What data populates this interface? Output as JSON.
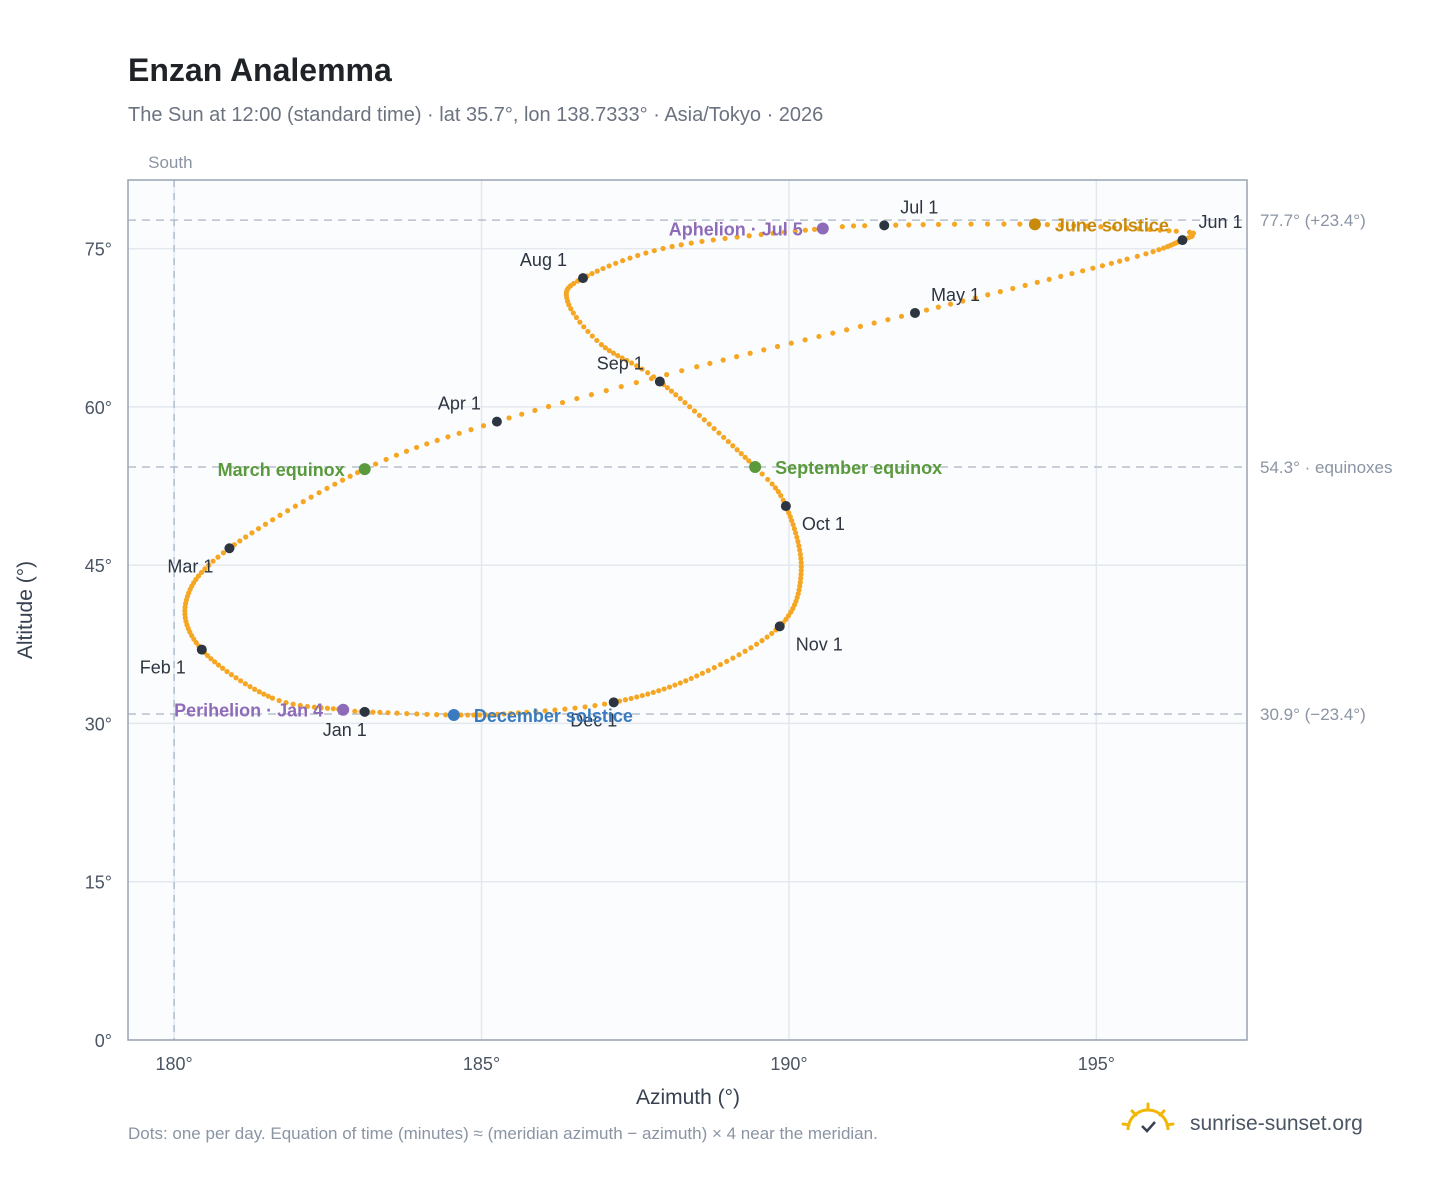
{
  "title": "Enzan Analemma",
  "subtitle": "The Sun at 12:00 (standard time) · lat 35.7°, lon 138.7333° · Asia/Tokyo · 2026",
  "footnote": "Dots: one per day. Equation of time (minutes) ≈ (meridian azimuth − azimuth) × 4 near the meridian.",
  "brand": {
    "name": "sunrise-sunset.org",
    "icon": "sun-check-icon"
  },
  "colors": {
    "curve": "#f5a623",
    "month_marker": "#2d3540",
    "equinox": "#5a9a3c",
    "june_solstice": "#c88a0a",
    "december_solstice": "#3a7bbf",
    "apsis": "#8e6bb8",
    "plot_bg": "#fbfcfe",
    "grid": "#e3e8ef",
    "axis": "#9aa3b2",
    "ref_line": "#b8c0cc"
  },
  "chart_data": {
    "type": "scatter",
    "title": "Enzan Analemma",
    "xlabel": "Azimuth (°)",
    "ylabel": "Altitude (°)",
    "xlim": [
      179.25,
      197.45
    ],
    "ylim": [
      0,
      81.5
    ],
    "xticks": [
      180,
      185,
      190,
      195
    ],
    "xtick_labels": [
      "180°",
      "185°",
      "190°",
      "195°"
    ],
    "yticks": [
      0,
      15,
      30,
      45,
      60,
      75
    ],
    "ytick_labels": [
      "0°",
      "15°",
      "30°",
      "45°",
      "60°",
      "75°"
    ],
    "grid": true,
    "meridian": {
      "x": 180,
      "label": "South"
    },
    "reference_lines": [
      {
        "y": 77.7,
        "label": "77.7° (+23.4°)"
      },
      {
        "y": 54.3,
        "label": "54.3° · equinoxes"
      },
      {
        "y": 30.9,
        "label": "30.9° (−23.4°)"
      }
    ],
    "series": [
      {
        "type": "daily-curve",
        "anchors": [
          {
            "doy": 1,
            "x": 183.1,
            "y": 31.1
          },
          {
            "doy": 4,
            "x": 182.75,
            "y": 31.3
          },
          {
            "doy": 15,
            "x": 181.6,
            "y": 32.4
          },
          {
            "doy": 32,
            "x": 180.45,
            "y": 37.0
          },
          {
            "doy": 46,
            "x": 180.2,
            "y": 41.7
          },
          {
            "doy": 60,
            "x": 180.9,
            "y": 46.6
          },
          {
            "doy": 79,
            "x": 183.1,
            "y": 54.1
          },
          {
            "doy": 91,
            "x": 185.25,
            "y": 58.6
          },
          {
            "doy": 105,
            "x": 188.5,
            "y": 63.8
          },
          {
            "doy": 121,
            "x": 192.05,
            "y": 68.9
          },
          {
            "doy": 140,
            "x": 195.5,
            "y": 74.0
          },
          {
            "doy": 152,
            "x": 196.4,
            "y": 75.8
          },
          {
            "doy": 156,
            "x": 196.55,
            "y": 76.3
          },
          {
            "doy": 160,
            "x": 196.3,
            "y": 76.65
          },
          {
            "doy": 172,
            "x": 194.0,
            "y": 77.3
          },
          {
            "doy": 182,
            "x": 191.55,
            "y": 77.2
          },
          {
            "doy": 186,
            "x": 190.55,
            "y": 76.9
          },
          {
            "doy": 200,
            "x": 188.1,
            "y": 75.2
          },
          {
            "doy": 213,
            "x": 186.65,
            "y": 72.2
          },
          {
            "doy": 222,
            "x": 186.4,
            "y": 70.0
          },
          {
            "doy": 232,
            "x": 186.95,
            "y": 65.9
          },
          {
            "doy": 244,
            "x": 187.9,
            "y": 62.4
          },
          {
            "doy": 266,
            "x": 189.45,
            "y": 54.3
          },
          {
            "doy": 274,
            "x": 189.95,
            "y": 50.6
          },
          {
            "doy": 290,
            "x": 190.2,
            "y": 44.5
          },
          {
            "doy": 305,
            "x": 189.85,
            "y": 39.2
          },
          {
            "doy": 320,
            "x": 188.5,
            "y": 34.5
          },
          {
            "doy": 335,
            "x": 187.15,
            "y": 32.0
          },
          {
            "doy": 345,
            "x": 185.6,
            "y": 31.0
          },
          {
            "doy": 355,
            "x": 184.55,
            "y": 30.8
          },
          {
            "doy": 365,
            "x": 183.15,
            "y": 31.1
          }
        ]
      }
    ],
    "month_markers": [
      {
        "label": "Jan 1",
        "x": 183.1,
        "y": 31.1,
        "anchor": "middle",
        "pos": "below"
      },
      {
        "label": "Feb 1",
        "x": 180.45,
        "y": 37.0,
        "anchor": "end",
        "pos": "below-left"
      },
      {
        "label": "Mar 1",
        "x": 180.9,
        "y": 46.6,
        "anchor": "end",
        "pos": "below-left"
      },
      {
        "label": "Apr 1",
        "x": 185.25,
        "y": 58.6,
        "anchor": "end",
        "pos": "above-left"
      },
      {
        "label": "May 1",
        "x": 192.05,
        "y": 68.9,
        "anchor": "start",
        "pos": "above-right"
      },
      {
        "label": "Jun 1",
        "x": 196.4,
        "y": 75.8,
        "anchor": "start",
        "pos": "above-right"
      },
      {
        "label": "Jul 1",
        "x": 191.55,
        "y": 77.2,
        "anchor": "start",
        "pos": "above-right"
      },
      {
        "label": "Aug 1",
        "x": 186.65,
        "y": 72.2,
        "anchor": "end",
        "pos": "above-left"
      },
      {
        "label": "Sep 1",
        "x": 187.9,
        "y": 62.4,
        "anchor": "end",
        "pos": "above-left"
      },
      {
        "label": "Oct 1",
        "x": 189.95,
        "y": 50.6,
        "anchor": "start",
        "pos": "below-right"
      },
      {
        "label": "Nov 1",
        "x": 189.85,
        "y": 39.2,
        "anchor": "start",
        "pos": "below-right"
      },
      {
        "label": "Dec 1",
        "x": 187.15,
        "y": 32.0,
        "anchor": "middle",
        "pos": "below"
      }
    ],
    "events": [
      {
        "label": "March equinox",
        "x": 183.1,
        "y": 54.1,
        "color_key": "equinox",
        "side": "left"
      },
      {
        "label": "September equinox",
        "x": 189.45,
        "y": 54.3,
        "color_key": "equinox",
        "side": "right"
      },
      {
        "label": "June solstice",
        "x": 194.0,
        "y": 77.3,
        "color_key": "june_solstice",
        "side": "right"
      },
      {
        "label": "December solstice",
        "x": 184.55,
        "y": 30.8,
        "color_key": "december_solstice",
        "side": "right"
      },
      {
        "label": "Perihelion · Jan 4",
        "x": 182.75,
        "y": 31.3,
        "color_key": "apsis",
        "side": "left"
      },
      {
        "label": "Aphelion · Jul 5",
        "x": 190.55,
        "y": 76.9,
        "color_key": "apsis",
        "side": "left"
      }
    ]
  }
}
